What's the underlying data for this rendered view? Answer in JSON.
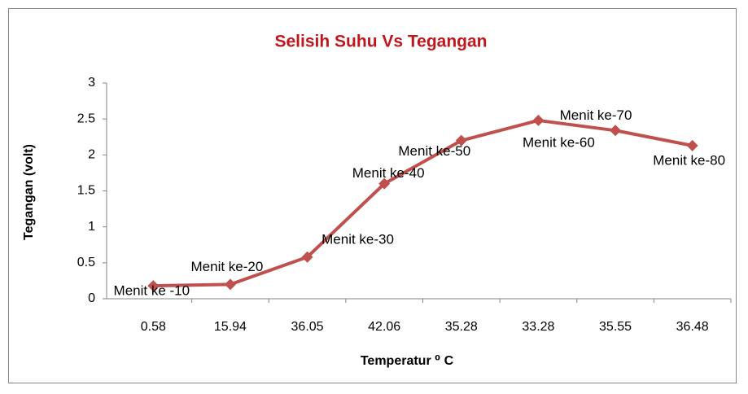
{
  "chart_data": {
    "type": "line",
    "title": "Selisih Suhu Vs Tegangan",
    "x_label": "Temperatur ⁰ C",
    "y_label": "Tegangan (volt)",
    "categories": [
      "0.58",
      "15.94",
      "36.05",
      "42.06",
      "35.28",
      "33.28",
      "35.55",
      "36.48"
    ],
    "series": [
      {
        "color": "#c0504d",
        "values": [
          0.18,
          0.2,
          0.58,
          1.6,
          2.2,
          2.48,
          2.34,
          2.13
        ]
      }
    ],
    "point_labels": [
      "Menit ke -10",
      "Menit ke-20",
      "Menit ke-30",
      "Menit ke-40",
      "Menit ke-50",
      "Menit ke-60",
      "Menit ke-70",
      "Menit ke-80"
    ],
    "ylim": [
      0,
      3
    ],
    "yticks": [
      0,
      {
        "value": 0.5,
        "label": "0.5"
      },
      1,
      {
        "value": 1.5,
        "label": "1.5"
      },
      2,
      {
        "value": 2.5,
        "label": "2.5"
      },
      3
    ],
    "grid": false,
    "title_color": "#c0171d"
  }
}
